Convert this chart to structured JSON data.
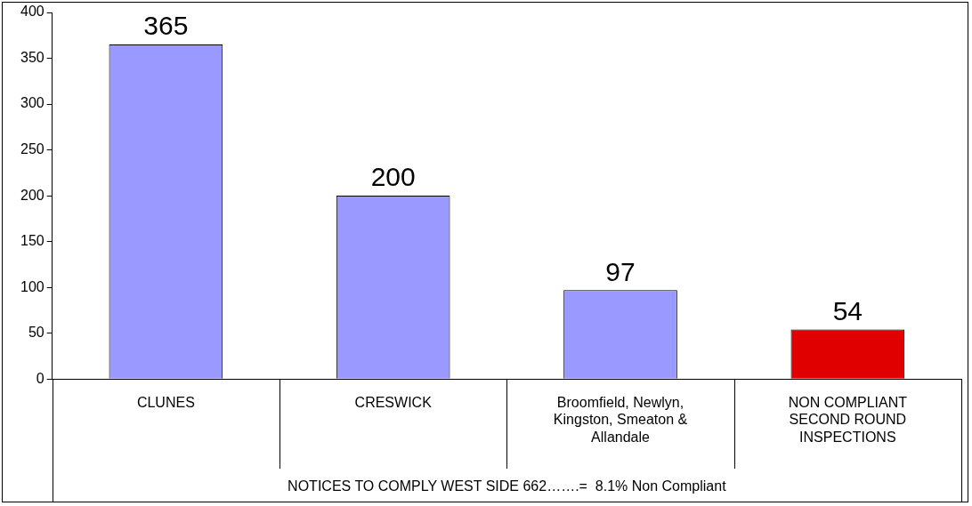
{
  "chart_data": {
    "type": "bar",
    "categories": [
      "CLUNES",
      "CRESWICK",
      "Broomfield, Newlyn, Kingston, Smeaton & Allandale",
      "NON COMPLIANT SECOND ROUND INSPECTIONS"
    ],
    "values": [
      365,
      200,
      97,
      54
    ],
    "colors": [
      "#9999ff",
      "#9999ff",
      "#9999ff",
      "#e00000"
    ],
    "ylim": [
      0,
      400
    ],
    "yticks": [
      0,
      50,
      100,
      150,
      200,
      250,
      300,
      350,
      400
    ],
    "grid": false,
    "legend": false,
    "data_labels": true,
    "xlabel": "NOTICES TO COMPLY WEST SIDE 662…….=  8.1% Non Compliant"
  }
}
